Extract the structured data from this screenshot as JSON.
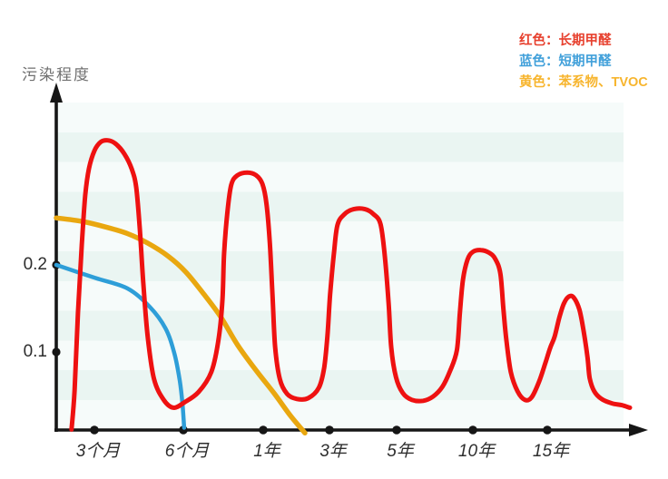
{
  "colors": {
    "stripe_light": "#f6fbfa",
    "stripe_teal": "#eaf5f2",
    "axis": "#161616",
    "tick_text": "#2e2e2e",
    "title_text": "#707070",
    "red_curve": "#ee1111",
    "blue_curve": "#2e9ed8",
    "yellow_curve": "#e9a70f"
  },
  "chart_data": {
    "type": "line",
    "title": "",
    "y_axis_label": "污染程度",
    "xlabel": "",
    "ylabel": "污染程度",
    "x_tick_labels": [
      "3个月",
      "6个月",
      "1年",
      "3年",
      "5年",
      "10年",
      "15年"
    ],
    "y_tick_labels": [
      "0.2",
      "0.1"
    ],
    "y_tick_values": [
      0.2,
      0.1
    ],
    "ylim": [
      0,
      0.36
    ],
    "x_units": "tick index: 1=3个月, 2=6个月, 3=1年, 4=3年, 5=5年, 6=10年, 7=15年",
    "grid": "horizontal teal stripes",
    "legend_position": "top-right",
    "legend": [
      {
        "label": "红色：长期甲醛",
        "color": "#e7402e",
        "series": "长期甲醛"
      },
      {
        "label": "蓝色：短期甲醛",
        "color": "#41a0da",
        "series": "短期甲醛"
      },
      {
        "label": "黄色：苯系物、TVOC",
        "color": "#f7b52e",
        "series": "苯系物、TVOC"
      }
    ],
    "series": [
      {
        "name": "苯系物、TVOC",
        "color": "#e9a70f",
        "stroke_width": 5.5,
        "points": [
          [
            0,
            0.254
          ],
          [
            0.67,
            0.25
          ],
          [
            1.11,
            0.244
          ],
          [
            1.37,
            0.236
          ],
          [
            1.6,
            0.225
          ],
          [
            1.83,
            0.21
          ],
          [
            2.03,
            0.192
          ],
          [
            2.26,
            0.166
          ],
          [
            2.47,
            0.14
          ],
          [
            2.68,
            0.108
          ],
          [
            2.91,
            0.079
          ],
          [
            3.16,
            0.053
          ],
          [
            3.41,
            0.027
          ],
          [
            3.63,
            0.007
          ]
        ]
      },
      {
        "name": "短期甲醛",
        "color": "#2e9ed8",
        "stroke_width": 4.5,
        "points": [
          [
            0,
            0.2
          ],
          [
            1.01,
            0.185
          ],
          [
            1.37,
            0.173
          ],
          [
            1.62,
            0.152
          ],
          [
            1.8,
            0.127
          ],
          [
            1.9,
            0.098
          ],
          [
            1.96,
            0.067
          ],
          [
            1.99,
            0.041
          ],
          [
            2.01,
            0.013
          ]
        ]
      },
      {
        "name": "长期甲醛",
        "color": "#ee1111",
        "stroke_width": 5,
        "points": [
          [
            0.4,
            0.011
          ],
          [
            0.48,
            0.056
          ],
          [
            0.57,
            0.145
          ],
          [
            0.67,
            0.223
          ],
          [
            0.76,
            0.28
          ],
          [
            0.86,
            0.311
          ],
          [
            1.0,
            0.331
          ],
          [
            1.07,
            0.341
          ],
          [
            1.15,
            0.343
          ],
          [
            1.24,
            0.339
          ],
          [
            1.34,
            0.327
          ],
          [
            1.42,
            0.31
          ],
          [
            1.47,
            0.289
          ],
          [
            1.51,
            0.242
          ],
          [
            1.55,
            0.179
          ],
          [
            1.6,
            0.117
          ],
          [
            1.67,
            0.069
          ],
          [
            1.78,
            0.045
          ],
          [
            1.89,
            0.036
          ],
          [
            2.01,
            0.042
          ],
          [
            2.19,
            0.054
          ],
          [
            2.35,
            0.077
          ],
          [
            2.44,
            0.114
          ],
          [
            2.49,
            0.16
          ],
          [
            2.51,
            0.213
          ],
          [
            2.55,
            0.259
          ],
          [
            2.6,
            0.292
          ],
          [
            2.68,
            0.303
          ],
          [
            2.8,
            0.306
          ],
          [
            2.91,
            0.303
          ],
          [
            2.99,
            0.293
          ],
          [
            3.05,
            0.27
          ],
          [
            3.1,
            0.225
          ],
          [
            3.14,
            0.166
          ],
          [
            3.18,
            0.106
          ],
          [
            3.25,
            0.069
          ],
          [
            3.36,
            0.052
          ],
          [
            3.51,
            0.046
          ],
          [
            3.68,
            0.047
          ],
          [
            3.84,
            0.059
          ],
          [
            3.92,
            0.082
          ],
          [
            3.97,
            0.119
          ],
          [
            4.01,
            0.166
          ],
          [
            4.07,
            0.216
          ],
          [
            4.12,
            0.246
          ],
          [
            4.22,
            0.258
          ],
          [
            4.36,
            0.264
          ],
          [
            4.53,
            0.264
          ],
          [
            4.66,
            0.258
          ],
          [
            4.76,
            0.247
          ],
          [
            4.82,
            0.213
          ],
          [
            4.88,
            0.157
          ],
          [
            4.92,
            0.105
          ],
          [
            4.99,
            0.071
          ],
          [
            5.08,
            0.053
          ],
          [
            5.2,
            0.045
          ],
          [
            5.35,
            0.044
          ],
          [
            5.48,
            0.049
          ],
          [
            5.6,
            0.06
          ],
          [
            5.7,
            0.078
          ],
          [
            5.79,
            0.102
          ],
          [
            5.83,
            0.145
          ],
          [
            5.87,
            0.183
          ],
          [
            5.93,
            0.206
          ],
          [
            6.0,
            0.215
          ],
          [
            6.11,
            0.217
          ],
          [
            6.22,
            0.214
          ],
          [
            6.3,
            0.207
          ],
          [
            6.37,
            0.19
          ],
          [
            6.41,
            0.15
          ],
          [
            6.45,
            0.114
          ],
          [
            6.51,
            0.077
          ],
          [
            6.6,
            0.055
          ],
          [
            6.7,
            0.045
          ],
          [
            6.79,
            0.048
          ],
          [
            6.89,
            0.066
          ],
          [
            6.98,
            0.089
          ],
          [
            7.04,
            0.105
          ],
          [
            7.1,
            0.118
          ],
          [
            7.16,
            0.139
          ],
          [
            7.22,
            0.155
          ],
          [
            7.28,
            0.163
          ],
          [
            7.35,
            0.163
          ],
          [
            7.43,
            0.149
          ],
          [
            7.49,
            0.123
          ],
          [
            7.54,
            0.094
          ],
          [
            7.57,
            0.07
          ],
          [
            7.63,
            0.055
          ],
          [
            7.73,
            0.046
          ],
          [
            7.87,
            0.041
          ],
          [
            8.0,
            0.039
          ],
          [
            8.11,
            0.036
          ]
        ]
      }
    ]
  }
}
